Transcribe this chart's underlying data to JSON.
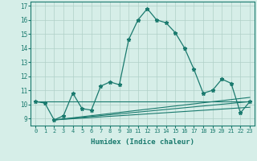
{
  "xlabel": "Humidex (Indice chaleur)",
  "background_color": "#d6eee8",
  "grid_color": "#b0d0c8",
  "line_color": "#1a7a6e",
  "xlim": [
    -0.5,
    23.5
  ],
  "ylim": [
    8.5,
    17.3
  ],
  "yticks": [
    9,
    10,
    11,
    12,
    13,
    14,
    15,
    16,
    17
  ],
  "xticks": [
    0,
    1,
    2,
    3,
    4,
    5,
    6,
    7,
    8,
    9,
    10,
    11,
    12,
    13,
    14,
    15,
    16,
    17,
    18,
    19,
    20,
    21,
    22,
    23
  ],
  "line1_x": [
    0,
    1,
    2,
    3,
    4,
    5,
    6,
    7,
    8,
    9,
    10,
    11,
    12,
    13,
    14,
    15,
    16,
    17,
    18,
    19,
    20,
    21,
    22,
    23
  ],
  "line1_y": [
    10.2,
    10.1,
    8.9,
    9.2,
    10.8,
    9.7,
    9.6,
    11.3,
    11.6,
    11.4,
    14.6,
    16.0,
    16.8,
    16.0,
    15.8,
    15.1,
    14.0,
    12.5,
    10.8,
    11.0,
    11.8,
    11.5,
    9.4,
    10.2
  ],
  "line2_x": [
    0,
    23
  ],
  "line2_y": [
    10.2,
    10.2
  ],
  "line3_x": [
    2,
    23
  ],
  "line3_y": [
    8.9,
    10.8
  ],
  "line4_x": [
    2,
    21
  ],
  "line4_y": [
    8.9,
    10.8
  ]
}
